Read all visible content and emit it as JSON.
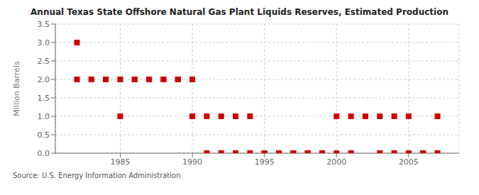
{
  "chart_data": {
    "type": "scatter",
    "title": "Annual Texas State Offshore Natural Gas Plant Liquids Reserves, Estimated Production",
    "ylabel": "Million Barrels",
    "annotations": [
      "Source: U.S. Energy Information Administration"
    ],
    "x": [
      1982,
      1982,
      1983,
      1983,
      1984,
      1984,
      1985,
      1985,
      1986,
      1986,
      1987,
      1987,
      1988,
      1988,
      1989,
      1989,
      1990,
      1990,
      1991,
      1991,
      1992,
      1992,
      1993,
      1993,
      1994,
      1994,
      1995,
      1995,
      1996,
      1996,
      1997,
      1997,
      1998,
      1998,
      1999,
      1999,
      2000,
      2000,
      2001,
      2001,
      2002,
      2002,
      2003,
      2003,
      2004,
      2004,
      2005,
      2005,
      2006,
      2006,
      2007,
      2007
    ],
    "values": [
      3.0,
      2.0,
      2.0,
      2.0,
      2.0,
      2.0,
      2.0,
      1.0,
      2.0,
      2.0,
      2.0,
      2.0,
      2.0,
      2.0,
      2.0,
      2.0,
      2.0,
      1.0,
      0.0,
      1.0,
      0.0,
      1.0,
      1.0,
      0.0,
      1.0,
      0.0,
      0.0,
      0.0,
      0.0,
      0.0,
      0.0,
      0.0,
      0.0,
      0.0,
      0.0,
      0.0,
      0.0,
      1.0,
      1.0,
      0.0,
      1.0,
      1.0,
      1.0,
      0.0,
      0.0,
      1.0,
      0.0,
      1.0,
      0.0,
      0.0,
      0.0,
      1.0
    ],
    "color": "#cc0000",
    "marker": "square",
    "xlim": [
      1980.5,
      2008.5
    ],
    "ylim": [
      0.0,
      3.5
    ],
    "xticks": [
      1985,
      1990,
      1995,
      2000,
      2005
    ],
    "yticks": [
      {
        "value": 0.0,
        "label": "0.0"
      },
      0.5,
      {
        "value": 1.0,
        "label": "1.0"
      },
      1.5,
      {
        "value": 2.0,
        "label": "2.0"
      },
      2.5,
      {
        "value": 3.0,
        "label": "3.0"
      },
      3.5
    ],
    "grid": true
  }
}
